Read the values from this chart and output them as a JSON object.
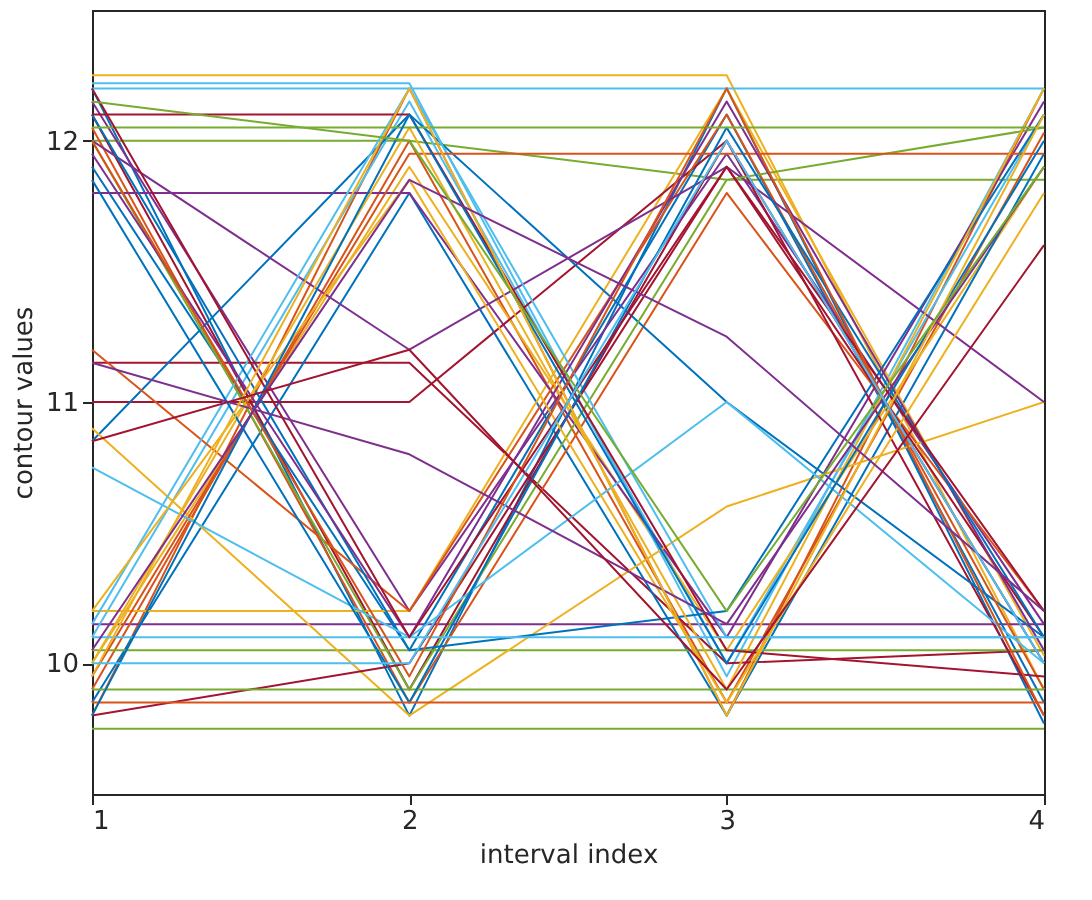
{
  "chart_data": {
    "type": "line",
    "xlabel": "interval index",
    "ylabel": "contour values",
    "x": [
      1,
      2,
      3,
      4
    ],
    "xlim": [
      1,
      4
    ],
    "xticks": [
      1,
      2,
      3,
      4
    ],
    "ylim": [
      9.5,
      12.5
    ],
    "yticks": [
      10,
      11,
      12
    ],
    "grid": false,
    "legend": false,
    "marker": "none",
    "line_style": "solid",
    "series": [
      {
        "color": "#0072bd",
        "values": [
          12.2,
          9.8,
          12.2,
          9.77
        ]
      },
      {
        "color": "#d95319",
        "values": [
          9.8,
          12.2,
          9.8,
          12.2
        ]
      },
      {
        "color": "#edb120",
        "values": [
          12.25,
          12.25,
          12.25,
          9.9
        ]
      },
      {
        "color": "#7e2f8e",
        "values": [
          10.15,
          10.15,
          10.15,
          10.15
        ]
      },
      {
        "color": "#77ac30",
        "values": [
          12.0,
          12.0,
          11.85,
          11.85
        ]
      },
      {
        "color": "#4dbeee",
        "values": [
          10.1,
          12.15,
          10.0,
          12.1
        ]
      },
      {
        "color": "#a2142f",
        "values": [
          12.1,
          9.9,
          12.0,
          10.0
        ]
      },
      {
        "color": "#0072bd",
        "values": [
          11.9,
          10.05,
          12.1,
          9.85
        ]
      },
      {
        "color": "#d95319",
        "values": [
          9.9,
          12.0,
          9.85,
          12.03
        ]
      },
      {
        "color": "#edb120",
        "values": [
          10.0,
          11.9,
          10.05,
          11.9
        ]
      },
      {
        "color": "#7e2f8e",
        "values": [
          12.15,
          10.2,
          11.95,
          10.15
        ]
      },
      {
        "color": "#77ac30",
        "values": [
          9.75,
          9.75,
          9.75,
          9.75
        ]
      },
      {
        "color": "#4dbeee",
        "values": [
          12.22,
          12.22,
          9.95,
          12.2
        ]
      },
      {
        "color": "#a2142f",
        "values": [
          11.15,
          11.15,
          10.0,
          10.05
        ]
      },
      {
        "color": "#0072bd",
        "values": [
          9.85,
          11.8,
          9.8,
          11.95
        ]
      },
      {
        "color": "#d95319",
        "values": [
          12.05,
          9.85,
          11.8,
          10.2
        ]
      },
      {
        "color": "#edb120",
        "values": [
          10.2,
          10.2,
          12.2,
          10.03
        ]
      },
      {
        "color": "#7e2f8e",
        "values": [
          11.8,
          11.8,
          10.1,
          12.15
        ]
      },
      {
        "color": "#77ac30",
        "values": [
          10.05,
          10.05,
          10.05,
          10.05
        ]
      },
      {
        "color": "#4dbeee",
        "values": [
          12.2,
          12.2,
          12.2,
          12.2
        ]
      },
      {
        "color": "#a2142f",
        "values": [
          11.0,
          11.0,
          12.0,
          9.8
        ]
      },
      {
        "color": "#0072bd",
        "values": [
          10.85,
          12.1,
          11.0,
          10.1
        ]
      },
      {
        "color": "#d95319",
        "values": [
          11.2,
          10.2,
          12.1,
          9.9
        ]
      },
      {
        "color": "#edb120",
        "values": [
          10.9,
          9.8,
          10.6,
          11.0
        ]
      },
      {
        "color": "#7e2f8e",
        "values": [
          12.0,
          11.2,
          11.9,
          11.0
        ]
      },
      {
        "color": "#77ac30",
        "values": [
          12.0,
          9.9,
          11.85,
          12.05
        ]
      },
      {
        "color": "#4dbeee",
        "values": [
          10.15,
          12.2,
          10.1,
          10.1
        ]
      },
      {
        "color": "#a2142f",
        "values": [
          9.8,
          10.0,
          11.9,
          10.1
        ]
      },
      {
        "color": "#0072bd",
        "values": [
          12.1,
          10.05,
          10.2,
          12.1
        ]
      },
      {
        "color": "#d95319",
        "values": [
          9.95,
          11.95,
          11.95,
          11.95
        ]
      },
      {
        "color": "#edb120",
        "values": [
          10.0,
          12.05,
          9.9,
          12.2
        ]
      },
      {
        "color": "#7e2f8e",
        "values": [
          11.95,
          10.1,
          12.15,
          10.05
        ]
      },
      {
        "color": "#77ac30",
        "values": [
          9.9,
          9.9,
          9.9,
          9.9
        ]
      },
      {
        "color": "#4dbeee",
        "values": [
          10.75,
          10.1,
          11.0,
          10.0
        ]
      },
      {
        "color": "#a2142f",
        "values": [
          12.1,
          12.1,
          10.05,
          9.95
        ]
      },
      {
        "color": "#0072bd",
        "values": [
          11.85,
          9.85,
          12.05,
          10.1
        ]
      },
      {
        "color": "#d95319",
        "values": [
          9.85,
          9.85,
          9.85,
          9.85
        ]
      },
      {
        "color": "#edb120",
        "values": [
          10.2,
          11.85,
          9.85,
          11.8
        ]
      },
      {
        "color": "#7e2f8e",
        "values": [
          11.15,
          10.8,
          10.15,
          11.9
        ]
      },
      {
        "color": "#77ac30",
        "values": [
          12.05,
          12.05,
          12.05,
          12.05
        ]
      },
      {
        "color": "#4dbeee",
        "values": [
          10.1,
          10.1,
          10.1,
          10.1
        ]
      },
      {
        "color": "#a2142f",
        "values": [
          12.2,
          10.1,
          11.9,
          10.2
        ]
      },
      {
        "color": "#0072bd",
        "values": [
          9.8,
          12.1,
          10.0,
          12.0
        ]
      },
      {
        "color": "#d95319",
        "values": [
          12.0,
          9.95,
          12.2,
          9.8
        ]
      },
      {
        "color": "#edb120",
        "values": [
          9.95,
          12.2,
          9.8,
          12.1
        ]
      },
      {
        "color": "#7e2f8e",
        "values": [
          10.05,
          11.85,
          11.25,
          10.2
        ]
      },
      {
        "color": "#77ac30",
        "values": [
          12.15,
          12.0,
          10.2,
          11.9
        ]
      },
      {
        "color": "#4dbeee",
        "values": [
          10.0,
          10.0,
          12.0,
          10.0
        ]
      },
      {
        "color": "#a2142f",
        "values": [
          10.85,
          11.2,
          9.9,
          11.6
        ]
      }
    ]
  }
}
